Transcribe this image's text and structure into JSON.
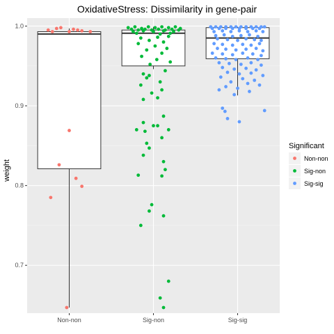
{
  "chart_data": {
    "type": "box",
    "title": "OxidativeStress: Dissimilarity in gene-pair",
    "xlabel": "",
    "ylabel": "weight",
    "categories": [
      "Non-non",
      "Sig-non",
      "Sig-sig"
    ],
    "ylim": [
      0.64,
      1.01
    ],
    "yticks": [
      0.7,
      0.8,
      0.9,
      1.0
    ],
    "ytick_labels": [
      "0.7",
      "0.8",
      "0.9",
      "1.0"
    ],
    "grid": true,
    "legend": {
      "title": "Significant",
      "position": "right",
      "entries": [
        {
          "label": "Non-non",
          "color": "#F8766D"
        },
        {
          "label": "Sig-non",
          "color": "#00BA38"
        },
        {
          "label": "Sig-sig",
          "color": "#619CFF"
        }
      ]
    },
    "boxes": [
      {
        "category": "Non-non",
        "q1": 0.821,
        "median": 0.99,
        "q3": 0.993,
        "whisker_low": 0.647,
        "whisker_high": 0.997
      },
      {
        "category": "Sig-non",
        "q1": 0.95,
        "median": 0.991,
        "q3": 0.995,
        "whisker_low": 0.946,
        "whisker_high": 0.999
      },
      {
        "category": "Sig-sig",
        "q1": 0.959,
        "median": 0.985,
        "q3": 0.998,
        "whisker_low": 0.913,
        "whisker_high": 0.999
      }
    ],
    "series": [
      {
        "name": "Non-non",
        "color": "#F8766D",
        "category": "Non-non",
        "points": [
          [
            -0.25,
            0.995
          ],
          [
            -0.15,
            0.997
          ],
          [
            -0.1,
            0.998
          ],
          [
            0.05,
            0.996
          ],
          [
            0.15,
            0.994
          ],
          [
            0.25,
            0.993
          ],
          [
            -0.2,
            0.993
          ],
          [
            0.1,
            0.995
          ],
          [
            0.0,
            0.993
          ],
          [
            0.0,
            0.869
          ],
          [
            -0.12,
            0.826
          ],
          [
            0.08,
            0.809
          ],
          [
            0.15,
            0.799
          ],
          [
            -0.22,
            0.785
          ],
          [
            -0.03,
            0.647
          ]
        ]
      },
      {
        "name": "Sig-non",
        "color": "#00BA38",
        "category": "Sig-non",
        "points": [
          [
            -0.3,
            0.998
          ],
          [
            -0.22,
            0.999
          ],
          [
            -0.14,
            0.997
          ],
          [
            -0.06,
            0.999
          ],
          [
            0.02,
            0.998
          ],
          [
            0.1,
            0.999
          ],
          [
            0.18,
            0.998
          ],
          [
            0.26,
            0.999
          ],
          [
            0.32,
            0.997
          ],
          [
            -0.26,
            0.996
          ],
          [
            -0.18,
            0.995
          ],
          [
            -0.1,
            0.996
          ],
          [
            -0.02,
            0.995
          ],
          [
            0.06,
            0.996
          ],
          [
            0.14,
            0.995
          ],
          [
            0.22,
            0.996
          ],
          [
            0.3,
            0.995
          ],
          [
            -0.24,
            0.993
          ],
          [
            -0.12,
            0.994
          ],
          [
            0.0,
            0.993
          ],
          [
            0.12,
            0.994
          ],
          [
            0.24,
            0.993
          ],
          [
            -0.2,
            0.991
          ],
          [
            0.08,
            0.99
          ],
          [
            0.2,
            0.991
          ],
          [
            -0.15,
            0.985
          ],
          [
            0.05,
            0.986
          ],
          [
            0.18,
            0.987
          ],
          [
            -0.05,
            0.982
          ],
          [
            0.12,
            0.98
          ],
          [
            -0.18,
            0.978
          ],
          [
            0.02,
            0.975
          ],
          [
            0.16,
            0.972
          ],
          [
            -0.08,
            0.97
          ],
          [
            0.1,
            0.966
          ],
          [
            -0.14,
            0.962
          ],
          [
            0.04,
            0.958
          ],
          [
            0.2,
            0.955
          ],
          [
            -0.04,
            0.952
          ],
          [
            -0.12,
            0.94
          ],
          [
            -0.05,
            0.938
          ],
          [
            0.14,
            0.944
          ],
          [
            0.08,
            0.93
          ],
          [
            -0.08,
            0.935
          ],
          [
            0.1,
            0.92
          ],
          [
            -0.02,
            0.916
          ],
          [
            -0.15,
            0.926
          ],
          [
            0.05,
            0.91
          ],
          [
            -0.12,
            0.908
          ],
          [
            0.12,
            0.887
          ],
          [
            0.0,
            0.875
          ],
          [
            0.05,
            0.875
          ],
          [
            -0.12,
            0.879
          ],
          [
            -0.2,
            0.87
          ],
          [
            -0.1,
            0.868
          ],
          [
            0.18,
            0.87
          ],
          [
            0.1,
            0.86
          ],
          [
            -0.08,
            0.853
          ],
          [
            -0.05,
            0.847
          ],
          [
            -0.12,
            0.838
          ],
          [
            0.12,
            0.83
          ],
          [
            0.14,
            0.82
          ],
          [
            -0.18,
            0.813
          ],
          [
            0.1,
            0.812
          ],
          [
            -0.02,
            0.776
          ],
          [
            -0.05,
            0.768
          ],
          [
            0.12,
            0.762
          ],
          [
            -0.15,
            0.75
          ],
          [
            0.18,
            0.68
          ],
          [
            0.08,
            0.659
          ],
          [
            0.12,
            0.647
          ]
        ]
      },
      {
        "name": "Sig-sig",
        "color": "#619CFF",
        "category": "Sig-sig",
        "points": [
          [
            -0.32,
            0.999
          ],
          [
            -0.26,
            0.999
          ],
          [
            -0.2,
            0.999
          ],
          [
            -0.14,
            0.999
          ],
          [
            -0.08,
            0.999
          ],
          [
            -0.02,
            0.999
          ],
          [
            0.04,
            0.999
          ],
          [
            0.1,
            0.999
          ],
          [
            0.16,
            0.999
          ],
          [
            0.22,
            0.999
          ],
          [
            0.28,
            0.999
          ],
          [
            0.32,
            0.999
          ],
          [
            -0.3,
            0.997
          ],
          [
            -0.22,
            0.997
          ],
          [
            -0.14,
            0.997
          ],
          [
            -0.06,
            0.997
          ],
          [
            0.02,
            0.997
          ],
          [
            0.1,
            0.997
          ],
          [
            0.18,
            0.997
          ],
          [
            0.26,
            0.997
          ],
          [
            -0.28,
            0.993
          ],
          [
            -0.18,
            0.994
          ],
          [
            -0.08,
            0.993
          ],
          [
            0.02,
            0.994
          ],
          [
            0.12,
            0.993
          ],
          [
            0.22,
            0.994
          ],
          [
            0.3,
            0.993
          ],
          [
            -0.26,
            0.988
          ],
          [
            -0.16,
            0.989
          ],
          [
            -0.06,
            0.987
          ],
          [
            0.04,
            0.988
          ],
          [
            0.14,
            0.989
          ],
          [
            0.24,
            0.987
          ],
          [
            -0.24,
            0.984
          ],
          [
            -0.12,
            0.983
          ],
          [
            0.0,
            0.982
          ],
          [
            0.1,
            0.984
          ],
          [
            0.2,
            0.983
          ],
          [
            0.28,
            0.982
          ],
          [
            -0.28,
            0.978
          ],
          [
            -0.18,
            0.977
          ],
          [
            -0.06,
            0.976
          ],
          [
            0.06,
            0.977
          ],
          [
            0.16,
            0.976
          ],
          [
            0.26,
            0.978
          ],
          [
            -0.24,
            0.972
          ],
          [
            -0.14,
            0.971
          ],
          [
            -0.02,
            0.97
          ],
          [
            0.1,
            0.971
          ],
          [
            0.22,
            0.972
          ],
          [
            0.3,
            0.969
          ],
          [
            -0.3,
            0.966
          ],
          [
            -0.18,
            0.965
          ],
          [
            -0.06,
            0.964
          ],
          [
            0.06,
            0.966
          ],
          [
            0.18,
            0.965
          ],
          [
            0.28,
            0.963
          ],
          [
            -0.26,
            0.96
          ],
          [
            -0.14,
            0.959
          ],
          [
            -0.02,
            0.958
          ],
          [
            0.12,
            0.96
          ],
          [
            0.24,
            0.958
          ],
          [
            -0.22,
            0.954
          ],
          [
            -0.1,
            0.953
          ],
          [
            0.04,
            0.952
          ],
          [
            0.16,
            0.954
          ],
          [
            0.28,
            0.951
          ],
          [
            -0.18,
            0.948
          ],
          [
            -0.04,
            0.946
          ],
          [
            0.1,
            0.947
          ],
          [
            0.22,
            0.945
          ],
          [
            -0.12,
            0.942
          ],
          [
            0.02,
            0.94
          ],
          [
            0.16,
            0.941
          ],
          [
            0.3,
            0.938
          ],
          [
            -0.2,
            0.936
          ],
          [
            0.06,
            0.934
          ],
          [
            0.2,
            0.932
          ],
          [
            -0.08,
            0.93
          ],
          [
            0.12,
            0.928
          ],
          [
            0.26,
            0.926
          ],
          [
            -0.14,
            0.924
          ],
          [
            0.0,
            0.922
          ],
          [
            -0.22,
            0.92
          ],
          [
            0.14,
            0.918
          ],
          [
            -0.04,
            0.914
          ],
          [
            -0.18,
            0.897
          ],
          [
            -0.15,
            0.893
          ],
          [
            0.32,
            0.894
          ],
          [
            -0.12,
            0.884
          ],
          [
            0.02,
            0.88
          ]
        ]
      }
    ]
  }
}
